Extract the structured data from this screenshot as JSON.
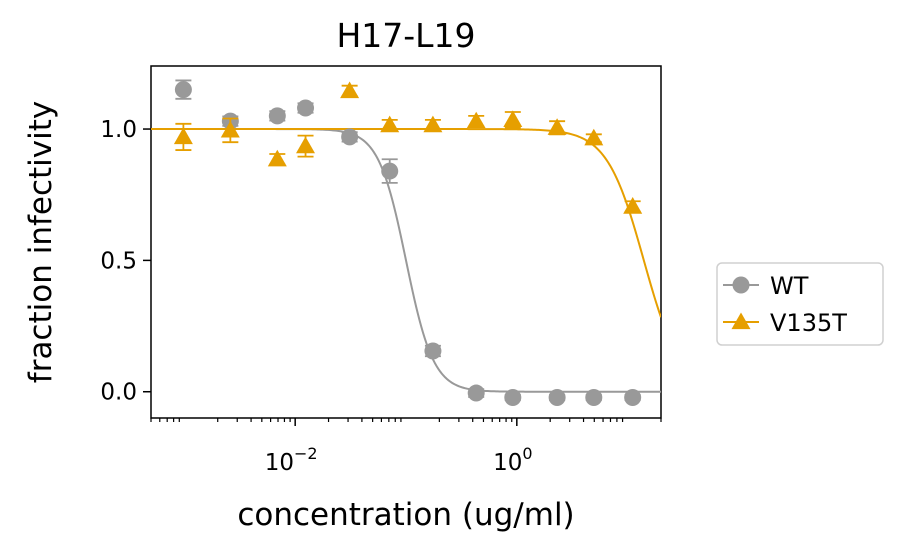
{
  "chart_data": {
    "type": "line",
    "title": "H17-L19",
    "xlabel": "concentration (ug/ml)",
    "ylabel": "fraction infectivity",
    "xscale": "log",
    "xlim": [
      0.0005,
      20
    ],
    "ylim": [
      -0.1,
      1.24
    ],
    "x_ticks": [
      {
        "value": 0.01,
        "base": "10",
        "exp": "−2"
      },
      {
        "value": 1,
        "base": "10",
        "exp": "0"
      }
    ],
    "y_ticks": [
      {
        "value": 0.0,
        "label": "0.0"
      },
      {
        "value": 0.5,
        "label": "0.5"
      },
      {
        "value": 1.0,
        "label": "1.0"
      }
    ],
    "grid": false,
    "legend_position": "outside-right",
    "series": [
      {
        "name": "WT",
        "color": "#999999",
        "marker": "circle",
        "x": [
          0.00098,
          0.0026,
          0.0069,
          0.0124,
          0.031,
          0.0713,
          0.175,
          0.43,
          0.92,
          2.31,
          4.95,
          11.1
        ],
        "y": [
          1.15,
          1.03,
          1.05,
          1.08,
          0.97,
          0.84,
          0.155,
          -0.005,
          -0.022,
          -0.022,
          -0.022,
          -0.022
        ],
        "err": [
          0.035,
          0.018,
          0.018,
          0.018,
          0.018,
          0.045,
          0.02,
          0.015,
          0.01,
          0.01,
          0.01,
          0.01
        ],
        "fit": {
          "top": 1.0,
          "bottom": 0.0,
          "ic50": 0.1,
          "hill": 3.5
        }
      },
      {
        "name": "V135T",
        "color": "#E69F00",
        "marker": "triangle",
        "x": [
          0.00098,
          0.0026,
          0.0069,
          0.0124,
          0.031,
          0.0713,
          0.175,
          0.43,
          0.92,
          2.31,
          4.95,
          11.1
        ],
        "y": [
          0.97,
          0.995,
          0.885,
          0.935,
          1.145,
          1.015,
          1.015,
          1.03,
          1.035,
          1.005,
          0.965,
          0.705
        ],
        "err": [
          0.05,
          0.045,
          0.02,
          0.04,
          0.02,
          0.02,
          0.02,
          0.02,
          0.03,
          0.025,
          0.015,
          0.02
        ],
        "fit": {
          "top": 1.0,
          "bottom": 0.0,
          "ic50": 14.0,
          "hill": 2.6
        }
      }
    ]
  }
}
